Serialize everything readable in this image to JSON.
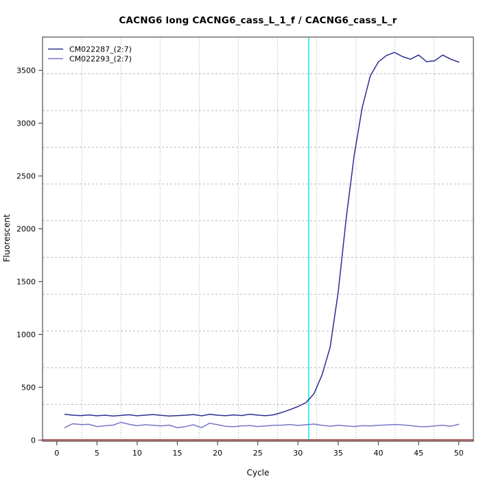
{
  "title": "CACNG6 long CACNG6_cass_L_1_f / CACNG6_cass_L_r",
  "axes": {
    "x": {
      "label": "Cycle",
      "ticks": [
        0,
        5,
        10,
        15,
        20,
        25,
        30,
        35,
        40,
        45,
        50
      ],
      "lim": [
        -1.77,
        51.82
      ]
    },
    "y": {
      "label": "Fluorescent",
      "ticks": [
        0,
        500,
        1000,
        1500,
        2000,
        2500,
        3000,
        3500
      ],
      "lim": [
        -10,
        3815
      ]
    }
  },
  "legend": [
    {
      "label": "CM022287_(2:7)",
      "color": "#2b2b94"
    },
    {
      "label": "CM022293_(2:7)",
      "color": "#7575c6"
    }
  ],
  "markers": {
    "threshold_line": {
      "value": 0,
      "color": "#c06060",
      "edge_color": "#9a4444"
    },
    "ct_line": {
      "cycle": 31.34,
      "color": "#00e4e4"
    }
  },
  "grid": {
    "nx": 11,
    "ny": 11,
    "h_color": "#b8b8b8",
    "v_color": "#9c9c9c"
  },
  "frame_color": "#4d4d4d",
  "chart_data": {
    "type": "line",
    "title": "CACNG6 long CACNG6_cass_L_1_f / CACNG6_cass_L_r",
    "xlabel": "Cycle",
    "ylabel": "Fluorescent",
    "xlim": [
      -1.77,
      51.82
    ],
    "ylim": [
      -10,
      3815
    ],
    "grid": "on",
    "legend_position": "top-left",
    "x": [
      1,
      2,
      3,
      4,
      5,
      6,
      7,
      8,
      9,
      10,
      11,
      12,
      13,
      14,
      15,
      16,
      17,
      18,
      19,
      20,
      21,
      22,
      23,
      24,
      25,
      26,
      27,
      28,
      29,
      30,
      31,
      32,
      33,
      34,
      35,
      36,
      37,
      38,
      39,
      40,
      41,
      42,
      43,
      44,
      45,
      46,
      47,
      48,
      49,
      50
    ],
    "series": [
      {
        "name": "CM022287_(2:7)",
        "color": "#2b2b94",
        "values": [
          244,
          236,
          232,
          238,
          230,
          236,
          228,
          234,
          240,
          230,
          237,
          242,
          234,
          228,
          232,
          236,
          242,
          230,
          244,
          236,
          231,
          238,
          233,
          245,
          237,
          231,
          240,
          262,
          288,
          318,
          355,
          440,
          620,
          880,
          1400,
          2100,
          2700,
          3150,
          3450,
          3580,
          3640,
          3670,
          3630,
          3605,
          3645,
          3582,
          3590,
          3645,
          3605,
          3578
        ]
      },
      {
        "name": "CM022293_(2:7)",
        "color": "#7575c6",
        "values": [
          119,
          155,
          148,
          150,
          128,
          136,
          142,
          168,
          150,
          136,
          146,
          140,
          134,
          142,
          117,
          128,
          145,
          117,
          160,
          146,
          130,
          127,
          134,
          138,
          129,
          134,
          140,
          142,
          148,
          139,
          146,
          152,
          140,
          131,
          140,
          134,
          129,
          137,
          134,
          140,
          143,
          148,
          144,
          137,
          129,
          127,
          134,
          140,
          131,
          150
        ]
      }
    ],
    "annotations": [
      {
        "type": "vline",
        "x": 31.34,
        "color": "#00e4e4",
        "meaning": "threshold-cycle"
      },
      {
        "type": "hline",
        "y": 0,
        "color": "#c06060",
        "meaning": "baseline-threshold"
      }
    ]
  }
}
